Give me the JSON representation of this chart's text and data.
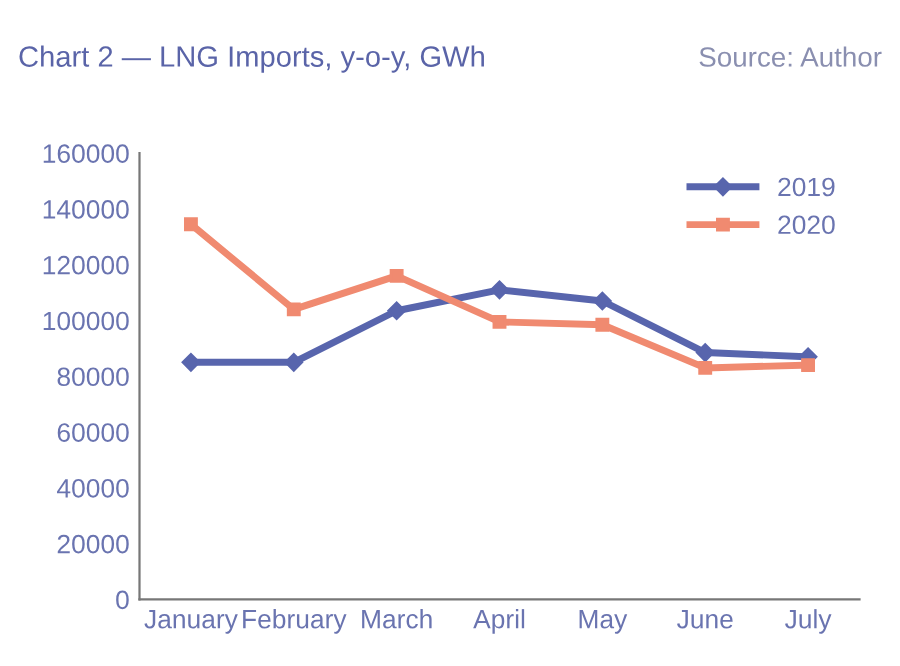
{
  "chart_data": {
    "type": "line",
    "title": "Chart 2 — LNG Imports, y-o-y, GWh",
    "annotations": [
      "Source: Author"
    ],
    "categories": [
      "January",
      "February",
      "March",
      "April",
      "May",
      "June",
      "July"
    ],
    "series": [
      {
        "name": "2019",
        "color": "#5865ad",
        "marker": "diamond",
        "values": [
          85000,
          85000,
          103500,
          111000,
          107000,
          88500,
          87000
        ]
      },
      {
        "name": "2020",
        "color": "#f08a70",
        "marker": "square",
        "values": [
          134500,
          104000,
          116000,
          99500,
          98500,
          83000,
          84000
        ]
      }
    ],
    "ylim": [
      0,
      160000
    ],
    "yticks": [
      0,
      20000,
      40000,
      60000,
      80000,
      100000,
      120000,
      140000,
      160000
    ],
    "grid": false,
    "legend": "top right",
    "line_style": "solid"
  }
}
